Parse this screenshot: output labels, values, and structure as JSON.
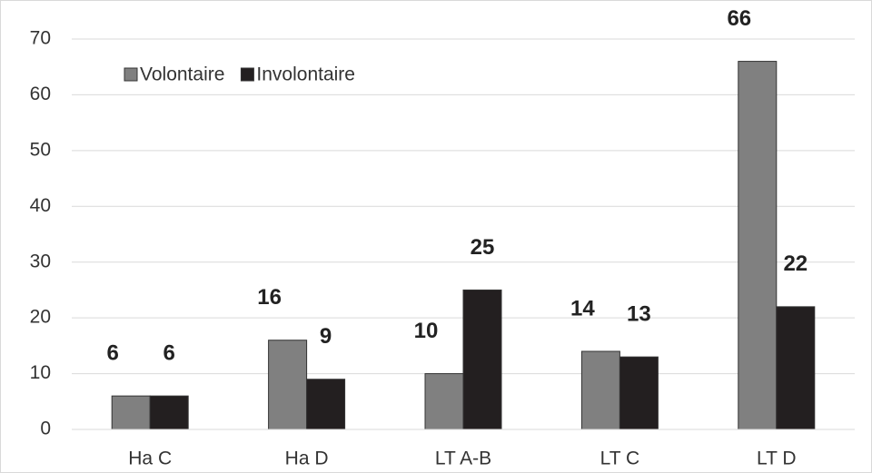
{
  "chart_data": {
    "type": "bar",
    "categories": [
      "Ha C",
      "Ha D",
      "LT A-B",
      "LT C",
      "LT D"
    ],
    "series": [
      {
        "name": "Volontaire",
        "color": "#808080",
        "values": [
          6,
          16,
          10,
          14,
          66
        ]
      },
      {
        "name": "Involontaire",
        "color": "#231f20",
        "values": [
          6,
          9,
          25,
          13,
          22
        ]
      }
    ],
    "ylim": [
      0,
      70
    ],
    "yticks": [
      0,
      10,
      20,
      30,
      40,
      50,
      60,
      70
    ],
    "grid": true,
    "legend": "top-left"
  }
}
